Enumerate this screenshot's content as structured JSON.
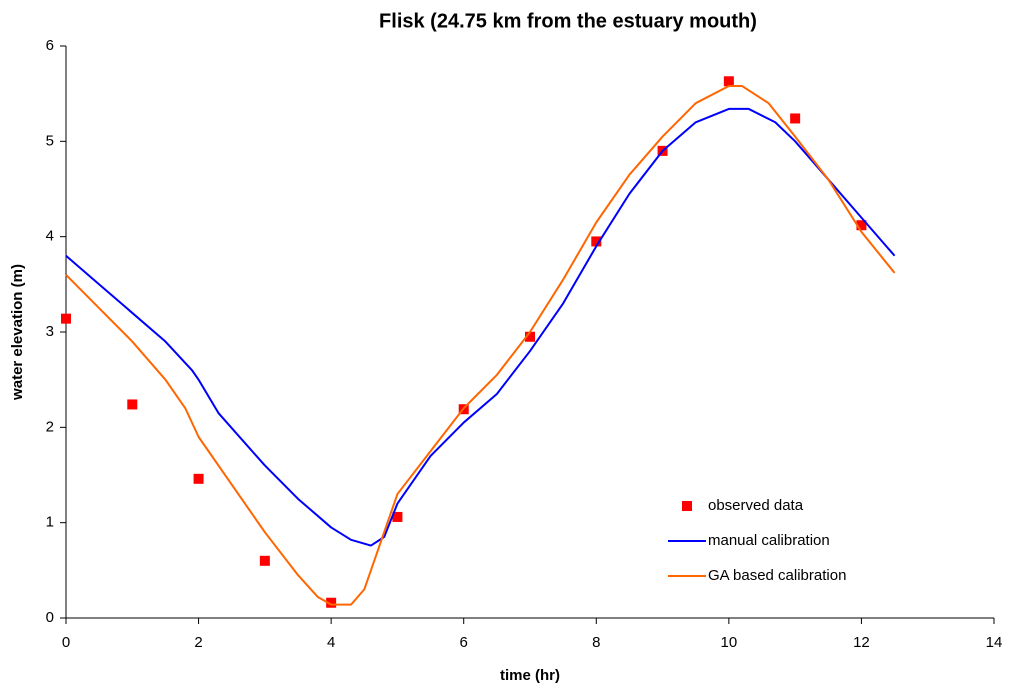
{
  "chart_data": {
    "type": "line",
    "title": "Flisk (24.75 km from the estuary mouth)",
    "xlabel": "time (hr)",
    "ylabel": "water elevation (m)",
    "xlim": [
      0,
      14
    ],
    "xticks": [
      0,
      2,
      4,
      6,
      8,
      10,
      12,
      14
    ],
    "ylim": [
      0,
      6
    ],
    "yticks": [
      0,
      1,
      2,
      3,
      4,
      5,
      6
    ],
    "grid": false,
    "legend": "lower right",
    "series": [
      {
        "name": "observed data",
        "color": "#ff0000",
        "marker": "square",
        "x": [
          0,
          1,
          2,
          3,
          4,
          5,
          6,
          7,
          8,
          9,
          10,
          11,
          12
        ],
        "values": [
          3.14,
          2.24,
          1.46,
          0.6,
          0.16,
          1.06,
          2.19,
          2.95,
          3.95,
          4.9,
          5.63,
          5.24,
          4.12
        ]
      },
      {
        "name": "manual calibration",
        "color": "#0000ff",
        "x": [
          0,
          0.5,
          1,
          1.5,
          1.9,
          2,
          2.3,
          3,
          3.5,
          4,
          4.3,
          4.6,
          4.8,
          5,
          5.5,
          6,
          6.5,
          7,
          7.5,
          8,
          8.5,
          9,
          9.5,
          10,
          10.3,
          10.7,
          11,
          11.5,
          12,
          12.5
        ],
        "values": [
          3.8,
          3.5,
          3.2,
          2.9,
          2.6,
          2.5,
          2.15,
          1.6,
          1.25,
          0.95,
          0.82,
          0.76,
          0.85,
          1.2,
          1.7,
          2.05,
          2.35,
          2.8,
          3.3,
          3.9,
          4.45,
          4.9,
          5.2,
          5.34,
          5.34,
          5.2,
          5.0,
          4.6,
          4.2,
          3.8
        ]
      },
      {
        "name": "GA based calibration",
        "color": "#ff6600",
        "x": [
          0,
          0.5,
          1,
          1.5,
          1.8,
          2,
          2.5,
          3,
          3.5,
          3.8,
          4,
          4.3,
          4.5,
          4.7,
          5,
          5.5,
          6,
          6.5,
          7,
          7.5,
          8,
          8.5,
          9,
          9.5,
          10,
          10.2,
          10.6,
          11,
          11.5,
          12,
          12.5
        ],
        "values": [
          3.6,
          3.25,
          2.9,
          2.5,
          2.2,
          1.9,
          1.4,
          0.9,
          0.45,
          0.22,
          0.14,
          0.14,
          0.3,
          0.7,
          1.3,
          1.75,
          2.2,
          2.55,
          3.0,
          3.55,
          4.15,
          4.65,
          5.05,
          5.4,
          5.58,
          5.58,
          5.4,
          5.05,
          4.6,
          4.05,
          3.62
        ]
      }
    ]
  }
}
